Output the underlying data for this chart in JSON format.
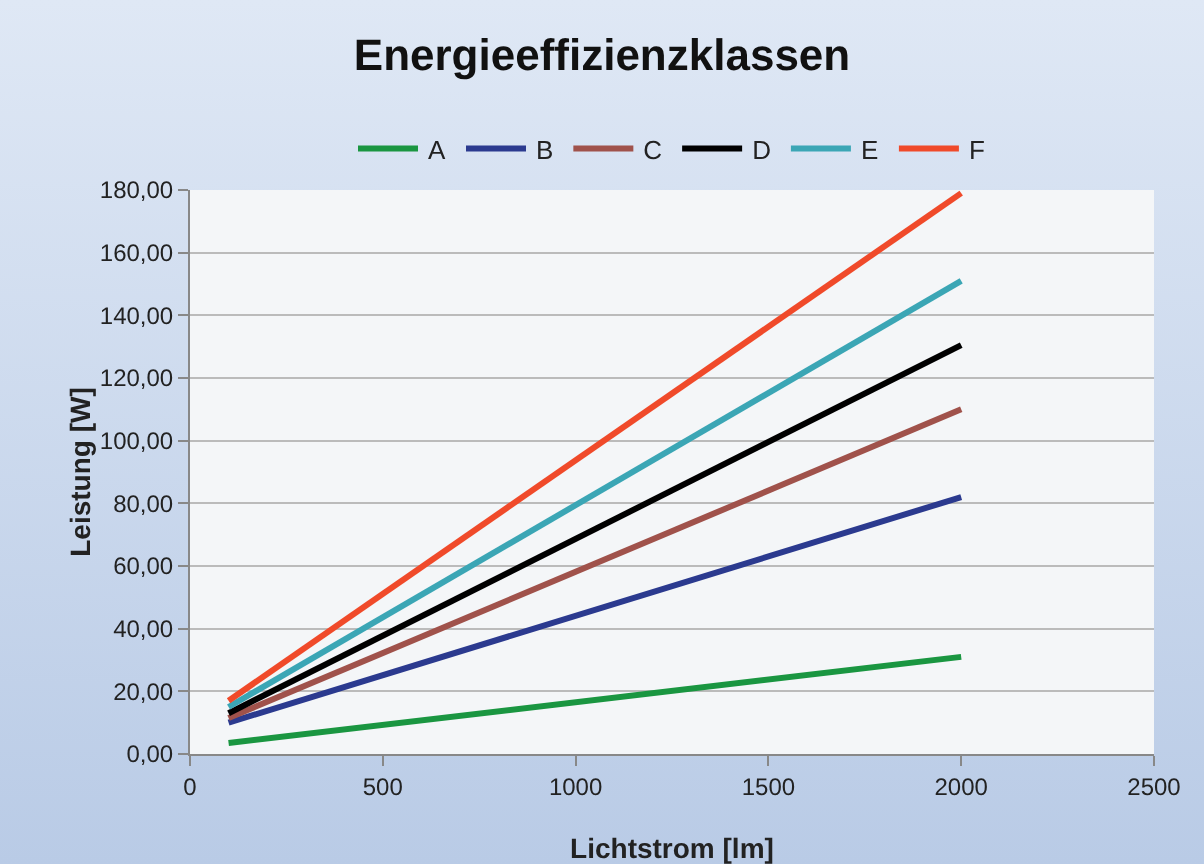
{
  "chart_data": {
    "type": "line",
    "title": "Energieeffizienzklassen",
    "xlabel": "Lichtstrom [lm]",
    "ylabel": "Leistung [W]",
    "x": [
      100,
      2000
    ],
    "series": [
      {
        "name": "A",
        "color": "#1a9641",
        "values": [
          3.5,
          31
        ]
      },
      {
        "name": "B",
        "color": "#2b3a8f",
        "values": [
          10,
          82
        ]
      },
      {
        "name": "C",
        "color": "#a0524b",
        "values": [
          11.5,
          110
        ]
      },
      {
        "name": "D",
        "color": "#000000",
        "values": [
          13,
          130.5
        ]
      },
      {
        "name": "E",
        "color": "#3ba6b5",
        "values": [
          15,
          151
        ]
      },
      {
        "name": "F",
        "color": "#f04a2a",
        "values": [
          17,
          179
        ]
      }
    ],
    "xlim": [
      0,
      2500
    ],
    "xticks": [
      0,
      500,
      1000,
      1500,
      2000,
      2500
    ],
    "ylim": [
      0,
      180
    ],
    "yticks": [
      {
        "value": 0,
        "label": "0,00"
      },
      {
        "value": 20,
        "label": "20,00"
      },
      {
        "value": 40,
        "label": "40,00"
      },
      {
        "value": 60,
        "label": "60,00"
      },
      {
        "value": 80,
        "label": "80,00"
      },
      {
        "value": 100,
        "label": "100,00"
      },
      {
        "value": 120,
        "label": "120,00"
      },
      {
        "value": 140,
        "label": "140,00"
      },
      {
        "value": 160,
        "label": "160,00"
      },
      {
        "value": 180,
        "label": "180,00"
      }
    ],
    "grid": "y",
    "legend": "top",
    "marker": "none",
    "line_style": "solid"
  }
}
